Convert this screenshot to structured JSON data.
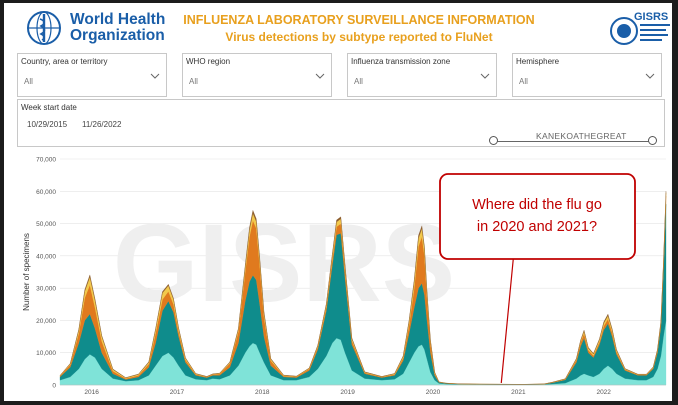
{
  "header": {
    "org_line1": "World Health",
    "org_line2": "Organization",
    "title": "INFLUENZA LABORATORY SURVEILLANCE INFORMATION",
    "subtitle": "Virus detections by subtype reported to FluNet",
    "logo_icon": "who-emblem-icon",
    "gisrs_logo_icon": "gisrs-globe-icon",
    "gisrs_text": "GISRS"
  },
  "filters": [
    {
      "label": "Country, area or territory",
      "value": "All"
    },
    {
      "label": "WHO region",
      "value": "All"
    },
    {
      "label": "Influenza transmission zone",
      "value": "All"
    },
    {
      "label": "Hemisphere",
      "value": "All"
    }
  ],
  "week_filter": {
    "label": "Week start date",
    "start": "10/29/2015",
    "end": "11/26/2022",
    "watermark": "KANEKOATHEGREAT"
  },
  "colors": {
    "teal_dark": "#0f8c8c",
    "teal_light": "#7fe3d8",
    "orange": "#e07a1e",
    "yellow": "#f2c94c",
    "brown": "#8a5a2b",
    "callout_red": "#c00000"
  },
  "chart_data": {
    "type": "area",
    "ylabel": "Number of specimens",
    "xlabel": "",
    "ylim": [
      0,
      70000
    ],
    "yticks": [
      "0",
      "10,000",
      "20,000",
      "30,000",
      "40,000",
      "50,000",
      "60,000",
      "70,000"
    ],
    "xticks": [
      "2016",
      "2017",
      "2018",
      "2019",
      "2020",
      "2021",
      "2022"
    ],
    "x_tick_positions_years": [
      2016.2,
      2017.2,
      2018.2,
      2019.2,
      2020.2,
      2021.2,
      2022.2
    ],
    "x_range_years": [
      2015.83,
      2022.93
    ],
    "watermark": "GISRS",
    "x": [
      2015.83,
      2015.95,
      2016.05,
      2016.12,
      2016.18,
      2016.24,
      2016.32,
      2016.45,
      2016.6,
      2016.75,
      2016.87,
      2016.95,
      2017.03,
      2017.1,
      2017.16,
      2017.22,
      2017.3,
      2017.42,
      2017.55,
      2017.62,
      2017.7,
      2017.82,
      2017.92,
      2018.0,
      2018.05,
      2018.09,
      2018.13,
      2018.17,
      2018.22,
      2018.3,
      2018.45,
      2018.6,
      2018.75,
      2018.85,
      2018.95,
      2019.02,
      2019.07,
      2019.12,
      2019.17,
      2019.25,
      2019.4,
      2019.6,
      2019.75,
      2019.85,
      2019.92,
      2019.98,
      2020.03,
      2020.07,
      2020.1,
      2020.13,
      2020.17,
      2020.22,
      2020.27,
      2020.35,
      2020.5,
      2020.75,
      2021.0,
      2021.25,
      2021.5,
      2021.6,
      2021.75,
      2021.88,
      2021.93,
      2021.97,
      2022.02,
      2022.08,
      2022.15,
      2022.2,
      2022.25,
      2022.3,
      2022.35,
      2022.45,
      2022.6,
      2022.7,
      2022.78,
      2022.83,
      2022.87,
      2022.9,
      2022.93
    ],
    "series": [
      {
        "name": "Light teal",
        "values": [
          1500,
          2500,
          5000,
          8000,
          9500,
          8500,
          5000,
          2000,
          1200,
          1500,
          3000,
          6000,
          9000,
          10000,
          8500,
          6000,
          3000,
          1800,
          1500,
          2000,
          1800,
          3000,
          6000,
          10000,
          12000,
          13000,
          12500,
          10000,
          7000,
          3000,
          1500,
          1500,
          2500,
          5000,
          9000,
          13000,
          14500,
          14000,
          10000,
          4500,
          2000,
          1500,
          1800,
          3500,
          7000,
          10000,
          12000,
          12500,
          11000,
          8000,
          4000,
          1500,
          500,
          300,
          200,
          150,
          120,
          100,
          150,
          300,
          600,
          2000,
          3000,
          3500,
          3000,
          2500,
          3500,
          5000,
          6000,
          5000,
          3500,
          2000,
          1500,
          1500,
          2500,
          5000,
          9000,
          15000,
          20000
        ]
      },
      {
        "name": "Dark teal",
        "values": [
          1000,
          3000,
          8000,
          12000,
          12500,
          9000,
          5000,
          1500,
          500,
          1000,
          2500,
          7000,
          14000,
          16000,
          14000,
          9000,
          4000,
          1200,
          800,
          1000,
          1200,
          2500,
          7000,
          16000,
          20000,
          21000,
          20000,
          15000,
          8000,
          3000,
          1000,
          800,
          2000,
          6000,
          14000,
          24000,
          32000,
          33000,
          23000,
          8000,
          1500,
          800,
          1200,
          4000,
          9000,
          14000,
          18000,
          19000,
          17000,
          12000,
          6000,
          1500,
          300,
          200,
          100,
          80,
          80,
          60,
          100,
          400,
          1000,
          5000,
          9000,
          11000,
          7000,
          6000,
          9000,
          12000,
          13000,
          10000,
          6000,
          2500,
          1500,
          1500,
          2500,
          5000,
          9000,
          20000,
          36000
        ]
      },
      {
        "name": "Orange",
        "values": [
          300,
          800,
          3000,
          7000,
          9000,
          6500,
          3500,
          800,
          300,
          500,
          1000,
          3000,
          3500,
          3000,
          2500,
          1500,
          800,
          300,
          200,
          300,
          400,
          1200,
          3500,
          9000,
          14000,
          17000,
          16000,
          12000,
          6000,
          1500,
          300,
          300,
          500,
          800,
          1200,
          1800,
          2500,
          3000,
          2500,
          1200,
          300,
          200,
          300,
          800,
          2500,
          6000,
          13000,
          14500,
          12000,
          7000,
          3000,
          600,
          100,
          50,
          40,
          30,
          30,
          30,
          40,
          100,
          200,
          800,
          1200,
          1500,
          800,
          600,
          800,
          1200,
          1500,
          1200,
          800,
          300,
          200,
          200,
          300,
          600,
          1000,
          1800,
          2500
        ]
      },
      {
        "name": "Yellow",
        "values": [
          100,
          300,
          1000,
          2000,
          2500,
          2200,
          1500,
          500,
          200,
          300,
          500,
          1200,
          2000,
          1800,
          1500,
          1000,
          500,
          200,
          100,
          100,
          200,
          300,
          800,
          1500,
          2000,
          2200,
          2100,
          1800,
          1200,
          500,
          200,
          100,
          200,
          400,
          700,
          1200,
          1500,
          1500,
          1200,
          600,
          200,
          100,
          200,
          500,
          1200,
          2000,
          2500,
          2500,
          2200,
          1500,
          800,
          300,
          50,
          30,
          20,
          20,
          20,
          20,
          30,
          60,
          100,
          300,
          500,
          700,
          600,
          500,
          700,
          900,
          1000,
          800,
          500,
          200,
          100,
          100,
          200,
          300,
          500,
          800,
          1000
        ]
      },
      {
        "name": "Brown",
        "values": [
          50,
          100,
          300,
          500,
          600,
          500,
          300,
          150,
          100,
          100,
          200,
          300,
          400,
          400,
          350,
          250,
          150,
          80,
          60,
          60,
          80,
          150,
          300,
          600,
          800,
          900,
          850,
          700,
          500,
          200,
          80,
          60,
          80,
          150,
          300,
          500,
          600,
          600,
          500,
          250,
          100,
          60,
          80,
          200,
          400,
          600,
          800,
          800,
          700,
          500,
          300,
          100,
          30,
          20,
          10,
          10,
          10,
          10,
          15,
          30,
          50,
          150,
          250,
          300,
          250,
          200,
          300,
          400,
          450,
          350,
          250,
          100,
          60,
          60,
          100,
          150,
          250,
          400,
          500
        ]
      }
    ],
    "annotation": {
      "text_line1": "Where did the flu go",
      "text_line2": "in 2020 and 2021?",
      "points_to_year": 2021.0
    }
  }
}
